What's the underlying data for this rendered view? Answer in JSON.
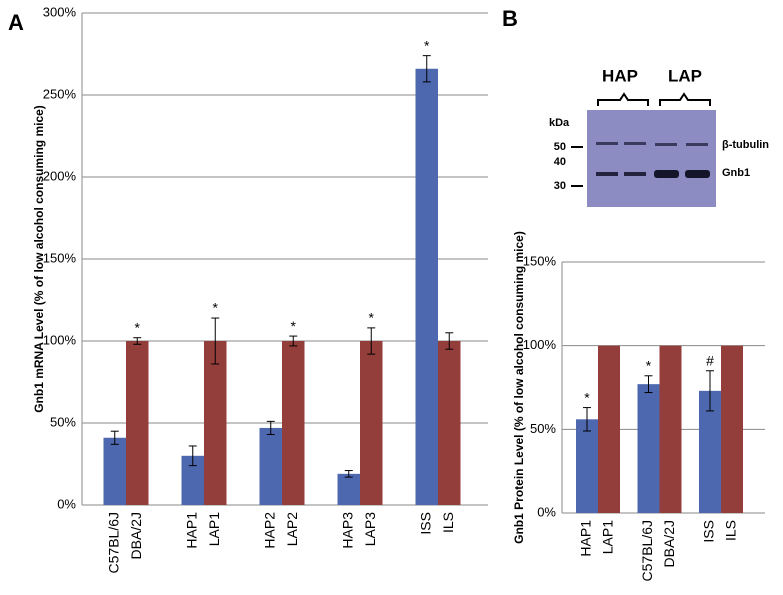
{
  "chart_data": [
    {
      "type": "bar",
      "panel": "A",
      "ylabel": "Gnb1 mRNA Level (% of low alcohol consuming mice)",
      "ylim": [
        0,
        300
      ],
      "yticks": [
        {
          "value": 0,
          "label": "0%"
        },
        {
          "value": 50,
          "label": "50%"
        },
        {
          "value": 100,
          "label": "100%"
        },
        {
          "value": 150,
          "label": "150%"
        },
        {
          "value": 200,
          "label": "200%"
        },
        {
          "value": 250,
          "label": "250%"
        },
        {
          "value": 300,
          "label": "300%"
        }
      ],
      "grid": true,
      "series": [
        {
          "color": "#4e68b0",
          "labels": [
            "C57BL/6J",
            "HAP1",
            "HAP2",
            "HAP3",
            "ISS"
          ],
          "values": [
            41,
            30,
            47,
            19,
            266
          ],
          "errors": [
            4,
            6,
            4,
            2,
            8
          ],
          "annotations": [
            null,
            null,
            null,
            null,
            "*"
          ]
        },
        {
          "color": "#943e3c",
          "labels": [
            "DBA/2J",
            "LAP1",
            "LAP2",
            "LAP3",
            "ILS"
          ],
          "values": [
            100,
            100,
            100,
            100,
            100
          ],
          "errors": [
            2,
            14,
            3,
            8,
            5
          ],
          "annotations": [
            "*",
            "*",
            "*",
            "*",
            null
          ]
        }
      ]
    },
    {
      "type": "bar",
      "panel": "B",
      "ylabel": "Gnb1 Protein Level (% of low alcohol consuming mice)",
      "ylim": [
        0,
        150
      ],
      "yticks": [
        {
          "value": 0,
          "label": "0%"
        },
        {
          "value": 50,
          "label": "50%"
        },
        {
          "value": 100,
          "label": "100%"
        },
        {
          "value": 150,
          "label": "150%"
        }
      ],
      "grid": true,
      "series": [
        {
          "color": "#4e68b0",
          "labels": [
            "HAP1",
            "C57BL/6J",
            "ISS"
          ],
          "values": [
            56,
            77,
            73
          ],
          "errors": [
            7,
            5,
            12
          ],
          "annotations": [
            "*",
            "*",
            "#"
          ]
        },
        {
          "color": "#943e3c",
          "labels": [
            "LAP1",
            "DBA/2J",
            "ILS"
          ],
          "values": [
            100,
            100,
            100
          ]
        }
      ]
    }
  ],
  "blot": {
    "groups": [
      "HAP",
      "LAP"
    ],
    "unit": "kDa",
    "markers": [
      "50",
      "40",
      "30"
    ],
    "bands": [
      "β-tubulin",
      "Gnb1"
    ]
  }
}
